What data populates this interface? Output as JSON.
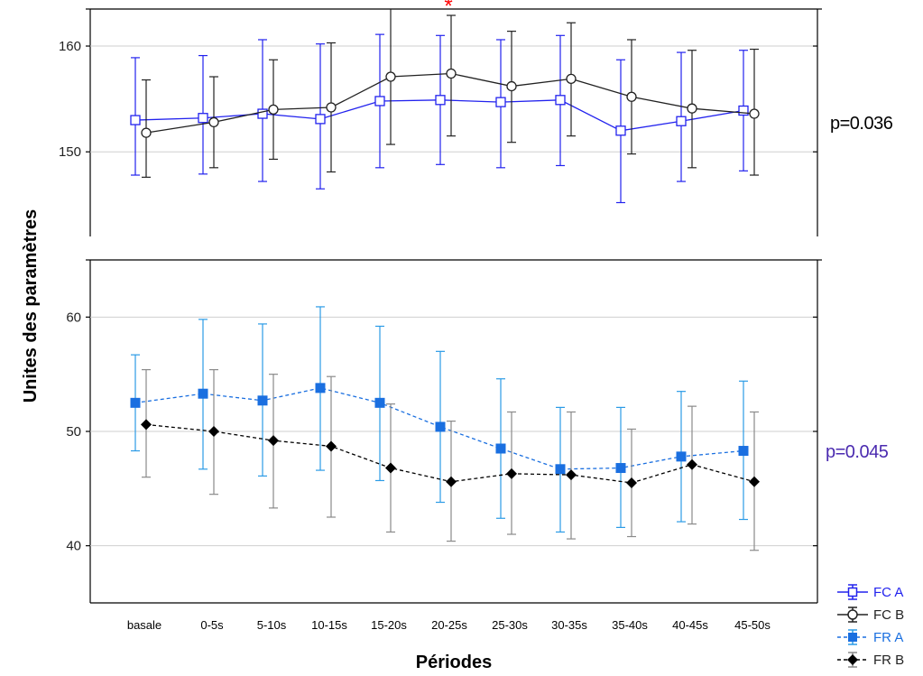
{
  "chart_data": [
    {
      "type": "line",
      "panel": "top",
      "xlabel": "Périodes",
      "ylabel": "Unites des paramètres",
      "ylim": [
        142,
        163.5
      ],
      "yticks": [
        150,
        160
      ],
      "grid": true,
      "categories": [
        "basale",
        "0-5s",
        "5-10s",
        "10-15s",
        "15-20s",
        "20-25s",
        "25-30s",
        "30-35s",
        "35-40s",
        "40-45s",
        "45-50s"
      ],
      "series": [
        {
          "name": "FC A",
          "color": "#2222ee",
          "marker": "open-square",
          "line": "solid",
          "values": [
            153.0,
            153.2,
            153.6,
            153.1,
            154.8,
            154.9,
            154.7,
            154.9,
            152.0,
            152.9,
            153.9
          ],
          "err_low": [
            147.8,
            147.9,
            147.2,
            146.5,
            148.5,
            148.8,
            148.5,
            148.7,
            145.2,
            147.2,
            148.2
          ],
          "err_high": [
            158.9,
            159.1,
            160.6,
            160.2,
            161.1,
            161.0,
            160.6,
            161.0,
            158.7,
            159.4,
            159.6
          ]
        },
        {
          "name": "FC B",
          "color": "#222222",
          "marker": "open-circle",
          "line": "solid",
          "values": [
            151.8,
            152.8,
            154.0,
            154.2,
            157.1,
            157.4,
            156.2,
            156.9,
            155.2,
            154.1,
            153.6
          ],
          "err_low": [
            147.6,
            148.5,
            149.3,
            148.1,
            150.7,
            151.5,
            150.9,
            151.5,
            149.8,
            148.5,
            147.8
          ],
          "err_high": [
            156.8,
            157.1,
            158.7,
            160.3,
            163.5,
            162.9,
            161.4,
            162.2,
            160.6,
            159.6,
            159.7
          ]
        }
      ],
      "annotations": [
        {
          "text": "*",
          "category": "20-25s",
          "y": 164.3,
          "color": "#ff0000"
        },
        {
          "text": "p=0.036",
          "color": "#000000"
        }
      ]
    },
    {
      "type": "line",
      "panel": "bottom",
      "xlabel": "Périodes",
      "ylabel": "Unites des paramètres",
      "ylim": [
        35,
        65
      ],
      "yticks": [
        40,
        50,
        60
      ],
      "grid": true,
      "categories": [
        "basale",
        "0-5s",
        "5-10s",
        "10-15s",
        "15-20s",
        "20-25s",
        "25-30s",
        "30-35s",
        "35-40s",
        "40-45s",
        "45-50s"
      ],
      "series": [
        {
          "name": "FR A",
          "color": "#1a6fe0",
          "errcolor": "#2b9be6",
          "marker": "filled-square",
          "line": "dashed",
          "values": [
            52.5,
            53.3,
            52.7,
            53.8,
            52.5,
            50.4,
            48.5,
            46.7,
            46.8,
            47.8,
            48.3
          ],
          "err_low": [
            48.3,
            46.7,
            46.1,
            46.6,
            45.7,
            43.8,
            42.4,
            41.2,
            41.6,
            42.1,
            42.3
          ],
          "err_high": [
            56.7,
            59.8,
            59.4,
            60.9,
            59.2,
            57.0,
            54.6,
            52.1,
            52.1,
            53.5,
            54.4
          ]
        },
        {
          "name": "FR B",
          "color": "#000000",
          "errcolor": "#8a8a8a",
          "marker": "filled-diamond",
          "line": "dashed",
          "values": [
            50.6,
            50.0,
            49.2,
            48.7,
            46.8,
            45.6,
            46.3,
            46.2,
            45.5,
            47.1,
            45.6
          ],
          "err_low": [
            46.0,
            44.5,
            43.3,
            42.5,
            41.2,
            40.4,
            41.0,
            40.6,
            40.8,
            41.9,
            39.6
          ],
          "err_high": [
            55.4,
            55.4,
            55.0,
            54.8,
            52.4,
            50.9,
            51.7,
            51.7,
            50.2,
            52.2,
            51.7
          ]
        }
      ],
      "annotations": [
        {
          "text": "p=0.045",
          "color": "#4b2bb0"
        }
      ]
    }
  ],
  "legend": {
    "placement": "bottom-right",
    "items": [
      "FC A",
      "FC B",
      "FR A",
      "FR B"
    ]
  }
}
